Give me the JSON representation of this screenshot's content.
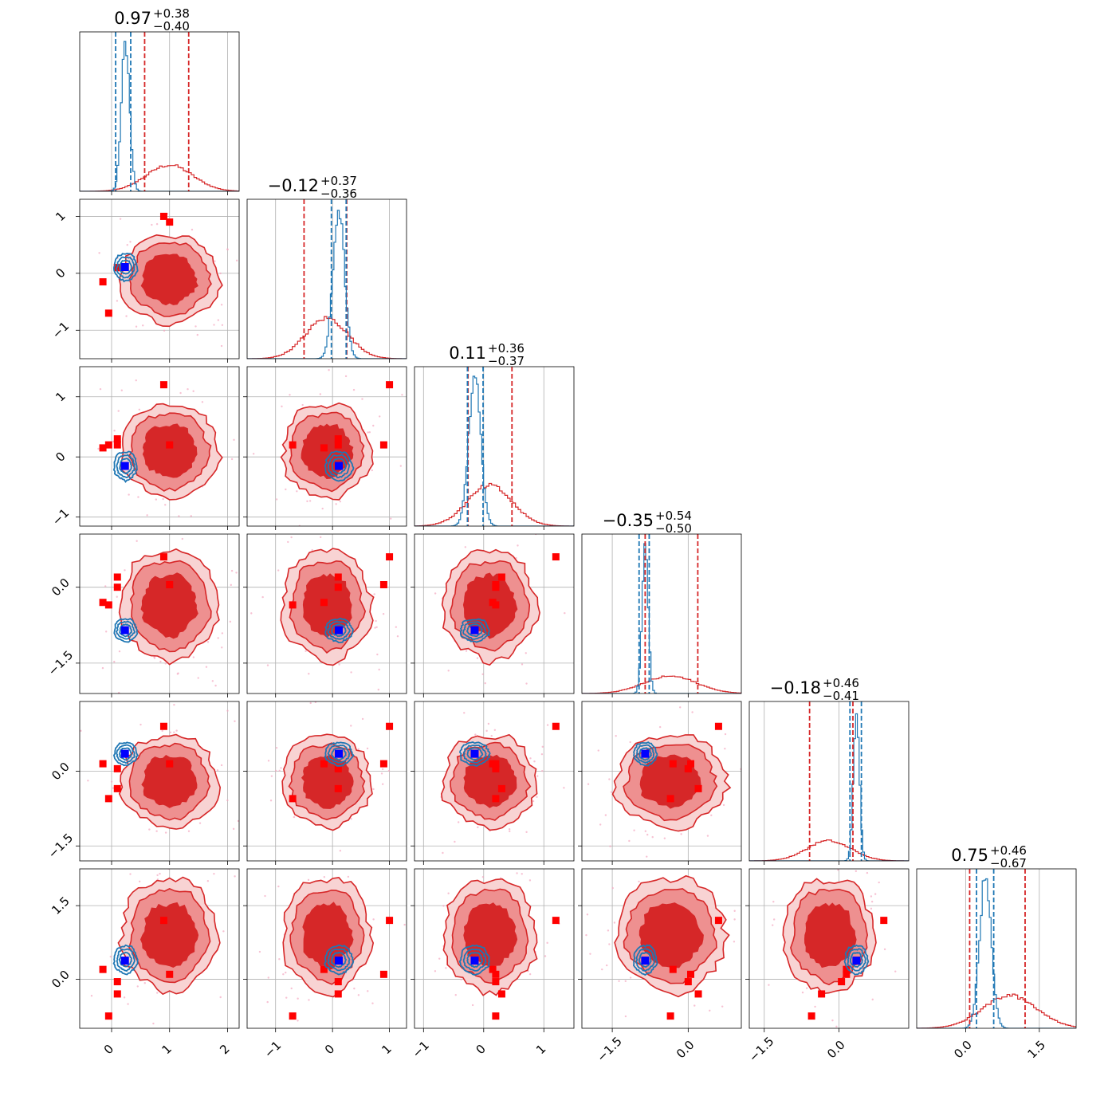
{
  "colors": {
    "red": "#d62728",
    "blue": "#1f77b4",
    "pink_scatter": "#f4a8c0",
    "true_marker": "#0000ff",
    "red_marker": "#ff0000",
    "fill_levels": [
      "#f8d3d3",
      "#ee9090",
      "#d62728"
    ]
  },
  "chart_data": {
    "type": "corner",
    "title": "",
    "n_params": 6,
    "titles": [
      {
        "value": "0.97",
        "plus": "+0.38",
        "minus": "−0.40"
      },
      {
        "value": "−0.12",
        "plus": "+0.37",
        "minus": "−0.36"
      },
      {
        "value": "0.11",
        "plus": "+0.36",
        "minus": "−0.37"
      },
      {
        "value": "−0.35",
        "plus": "+0.54",
        "minus": "−0.50"
      },
      {
        "value": "−0.18",
        "plus": "+0.46",
        "minus": "−0.41"
      },
      {
        "value": "0.75",
        "plus": "+0.46",
        "minus": "−0.67"
      }
    ],
    "ranges": [
      [
        -0.55,
        2.2
      ],
      [
        -1.5,
        1.3
      ],
      [
        -1.15,
        1.5
      ],
      [
        -2.1,
        1.05
      ],
      [
        -1.8,
        1.4
      ],
      [
        -1.0,
        2.25
      ]
    ],
    "x_ticks": [
      {
        "values": [
          0,
          1,
          2
        ],
        "labels": [
          "0",
          "1",
          "2"
        ]
      },
      {
        "values": [
          -1,
          0,
          1
        ],
        "labels": [
          "−1",
          "0",
          "1"
        ]
      },
      {
        "values": [
          -1,
          0,
          1
        ],
        "labels": [
          "−1",
          "0",
          "1"
        ]
      },
      {
        "values": [
          -1.5,
          0.0
        ],
        "labels": [
          "−1.5",
          "0.0"
        ]
      },
      {
        "values": [
          -1.5,
          0.0
        ],
        "labels": [
          "−1.5",
          "0.0"
        ]
      },
      {
        "values": [
          0.0,
          1.5
        ],
        "labels": [
          "0.0",
          "1.5"
        ]
      }
    ],
    "y_ticks": [
      null,
      {
        "values": [
          1,
          0,
          -1
        ],
        "labels": [
          "1",
          "0",
          "−1"
        ]
      },
      {
        "values": [
          1,
          0,
          -1
        ],
        "labels": [
          "1",
          "0",
          "−1"
        ]
      },
      {
        "values": [
          0.0,
          -1.5
        ],
        "labels": [
          "0.0",
          "−1.5"
        ]
      },
      {
        "values": [
          0.0,
          -1.5
        ],
        "labels": [
          "0.0",
          "−1.5"
        ]
      },
      {
        "values": [
          1.5,
          0.0
        ],
        "labels": [
          "1.5",
          "0.0"
        ]
      }
    ],
    "posterior_red": {
      "name": "",
      "color": "#d62728",
      "center": [
        1.0,
        -0.1,
        0.1,
        -0.35,
        -0.2,
        0.9
      ],
      "sigma": [
        0.4,
        0.37,
        0.37,
        0.52,
        0.44,
        0.55
      ],
      "quantiles": [
        [
          0.57,
          1.33
        ],
        [
          -0.5,
          0.25
        ],
        [
          -0.26,
          0.47
        ],
        [
          -0.85,
          0.19
        ],
        [
          -0.59,
          0.28
        ],
        [
          0.08,
          1.21
        ]
      ]
    },
    "posterior_blue": {
      "name": "",
      "color": "#1f77b4",
      "center": [
        0.24,
        0.11,
        -0.15,
        -0.85,
        0.35,
        0.4
      ],
      "sigma": [
        0.07,
        0.1,
        0.1,
        0.06,
        0.06,
        0.12
      ],
      "quantiles": [
        [
          0.07,
          0.33
        ],
        [
          -0.02,
          0.24
        ],
        [
          -0.27,
          -0.01
        ],
        [
          -0.97,
          -0.77
        ],
        [
          0.22,
          0.45
        ],
        [
          0.22,
          0.57
        ]
      ]
    },
    "true_values": [
      0.23,
      0.11,
      -0.15,
      -0.85,
      0.35,
      0.38
    ],
    "red_markers": [
      [
        0.9,
        1.0,
        1.2,
        0.6,
        0.9,
        1.2
      ],
      [
        -0.15,
        -0.15,
        0.15,
        -0.3,
        0.15,
        0.2
      ],
      [
        0.1,
        0.1,
        0.2,
        0.0,
        0.05,
        -0.05
      ],
      [
        -0.05,
        -0.7,
        0.2,
        -0.35,
        -0.55,
        -0.75
      ],
      [
        0.1,
        0.1,
        0.3,
        0.2,
        -0.35,
        -0.3
      ],
      [
        1.0,
        0.9,
        0.2,
        0.05,
        0.15,
        0.1
      ]
    ],
    "grid": true
  }
}
